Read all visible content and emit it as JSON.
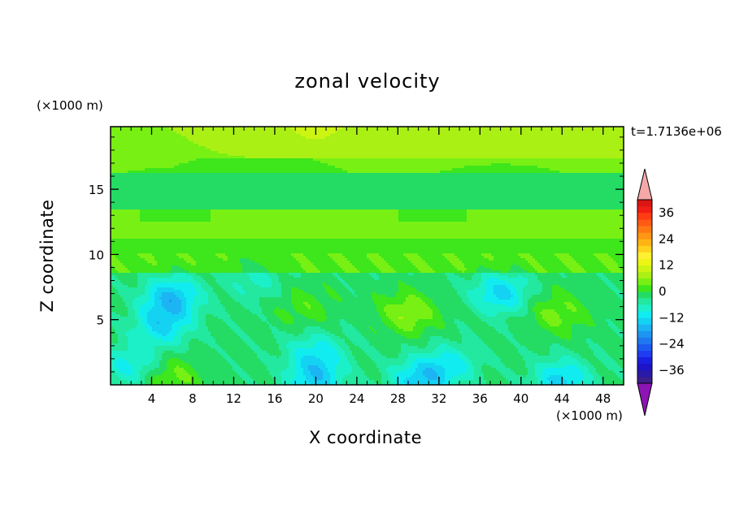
{
  "chart_data": {
    "type": "heatmap",
    "title": "zonal velocity",
    "xlabel": "X coordinate",
    "ylabel": "Z coordinate",
    "x_unit_label": "(×1000 m)",
    "y_unit_label": "(×1000 m)",
    "time_label": "t=1.7136e+06",
    "xlim": [
      0,
      50
    ],
    "ylim": [
      0,
      19.8
    ],
    "x_ticks": [
      4,
      8,
      12,
      16,
      20,
      24,
      28,
      32,
      36,
      40,
      44,
      48
    ],
    "x_tick_labels": [
      "4",
      "8",
      "12",
      "16",
      "20",
      "24",
      "28",
      "32",
      "36",
      "40",
      "44",
      "48"
    ],
    "y_ticks": [
      5,
      10,
      15
    ],
    "y_tick_labels": [
      "5",
      "10",
      "15"
    ],
    "colorbar": {
      "levels": [
        -42,
        -39,
        -36,
        -33,
        -30,
        -27,
        -24,
        -21,
        -18,
        -15,
        -12,
        -9,
        -6,
        -3,
        0,
        3,
        6,
        9,
        12,
        15,
        18,
        21,
        24,
        27,
        30,
        33,
        36,
        39,
        42
      ],
      "tick_values": [
        -36,
        -24,
        -12,
        0,
        12,
        24,
        36
      ],
      "tick_labels": [
        "−36",
        "−24",
        "−12",
        "0",
        "12",
        "24",
        "36"
      ],
      "colors": [
        "#3c1e8c",
        "#2a1aa8",
        "#1e14c8",
        "#1a20e0",
        "#1f3cf0",
        "#1c5af0",
        "#1e78f0",
        "#1e96f0",
        "#1cb4f2",
        "#14d2f2",
        "#10ecf0",
        "#1cf0c8",
        "#22e8a0",
        "#24dc64",
        "#3ee61c",
        "#78f014",
        "#aaf014",
        "#ccf514",
        "#ecf514",
        "#fff032",
        "#ffd21c",
        "#ffb414",
        "#ff9614",
        "#ff7814",
        "#ff5a14",
        "#ff3c14",
        "#f01e14",
        "#dc1414"
      ],
      "under_color": "#8c14b4",
      "over_color": "#f4a8a8"
    },
    "field_sources": [
      {
        "x": 6,
        "z": 6.7,
        "value": -13
      },
      {
        "x": 5,
        "z": 4.5,
        "value": -10
      },
      {
        "x": 38,
        "z": 7,
        "value": -11
      },
      {
        "x": 20,
        "z": 2.5,
        "value": -8
      },
      {
        "x": 2,
        "z": 1.5,
        "value": -8
      },
      {
        "x": 33,
        "z": 1.5,
        "value": -8
      },
      {
        "x": 14,
        "z": 8,
        "value": -5
      },
      {
        "x": 19,
        "z": 6,
        "value": 4
      },
      {
        "x": 29,
        "z": 5.5,
        "value": 8
      },
      {
        "x": 43.5,
        "z": 5.5,
        "value": 6
      },
      {
        "x": 6,
        "z": 0.6,
        "value": 6
      },
      {
        "x": 20,
        "z": 19.2,
        "value": 8
      },
      {
        "x": 30,
        "z": 0.4,
        "value": -11
      },
      {
        "x": 20,
        "z": 0.4,
        "value": -11
      },
      {
        "x": 44,
        "z": 0.4,
        "value": -11
      }
    ]
  }
}
